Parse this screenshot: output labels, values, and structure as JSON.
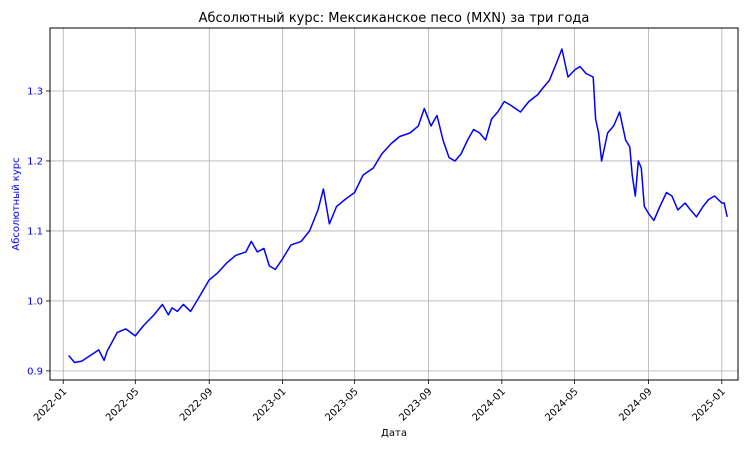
{
  "chart_data": {
    "type": "line",
    "title": "Абсолютный курс: Мексиканское песо (MXN) за три года",
    "xlabel": "Дата",
    "ylabel": "Абсолютный курс",
    "x_ticks": [
      "2022-01",
      "2022-05",
      "2022-09",
      "2023-01",
      "2023-05",
      "2023-09",
      "2024-01",
      "2024-05",
      "2024-09",
      "2025-01"
    ],
    "y_ticks": [
      "0.9",
      "1.0",
      "1.1",
      "1.2",
      "1.3"
    ],
    "xlim": [
      "2021-12-10",
      "2025-01-28"
    ],
    "ylim": [
      0.887,
      1.39
    ],
    "grid": true,
    "colors": {
      "line": "#0000ff",
      "ylabel": "#0000ff",
      "ytick_labels": "#0000ff"
    },
    "series": [
      {
        "x": [
          "2022-01-10",
          "2022-01-20",
          "2022-02-01",
          "2022-02-15",
          "2022-03-01",
          "2022-03-10",
          "2022-03-15",
          "2022-04-01",
          "2022-04-15",
          "2022-05-01",
          "2022-05-15",
          "2022-06-01",
          "2022-06-15",
          "2022-06-25",
          "2022-07-01",
          "2022-07-10",
          "2022-07-20",
          "2022-08-01",
          "2022-08-15",
          "2022-09-01",
          "2022-09-15",
          "2022-10-01",
          "2022-10-15",
          "2022-11-01",
          "2022-11-10",
          "2022-11-20",
          "2022-12-01",
          "2022-12-10",
          "2022-12-20",
          "2023-01-01",
          "2023-01-15",
          "2023-02-01",
          "2023-02-15",
          "2023-03-01",
          "2023-03-10",
          "2023-03-20",
          "2023-04-01",
          "2023-04-15",
          "2023-05-01",
          "2023-05-15",
          "2023-06-01",
          "2023-06-15",
          "2023-07-01",
          "2023-07-15",
          "2023-08-01",
          "2023-08-15",
          "2023-08-25",
          "2023-09-05",
          "2023-09-15",
          "2023-09-25",
          "2023-10-05",
          "2023-10-15",
          "2023-10-25",
          "2023-11-05",
          "2023-11-15",
          "2023-11-25",
          "2023-12-05",
          "2023-12-15",
          "2023-12-25",
          "2024-01-05",
          "2024-01-15",
          "2024-02-01",
          "2024-02-15",
          "2024-03-01",
          "2024-03-10",
          "2024-03-20",
          "2024-04-01",
          "2024-04-10",
          "2024-04-20",
          "2024-05-01",
          "2024-05-10",
          "2024-05-20",
          "2024-06-01",
          "2024-06-05",
          "2024-06-10",
          "2024-06-15",
          "2024-06-25",
          "2024-07-05",
          "2024-07-15",
          "2024-07-25",
          "2024-08-01",
          "2024-08-05",
          "2024-08-10",
          "2024-08-15",
          "2024-08-20",
          "2024-08-25",
          "2024-09-01",
          "2024-09-10",
          "2024-09-20",
          "2024-10-01",
          "2024-10-10",
          "2024-10-20",
          "2024-11-01",
          "2024-11-10",
          "2024-11-20",
          "2024-12-01",
          "2024-12-10",
          "2024-12-20",
          "2025-01-01",
          "2025-01-05",
          "2025-01-10"
        ],
        "y": [
          0.922,
          0.912,
          0.914,
          0.922,
          0.93,
          0.915,
          0.928,
          0.955,
          0.96,
          0.95,
          0.965,
          0.98,
          0.995,
          0.98,
          0.99,
          0.985,
          0.995,
          0.985,
          1.005,
          1.03,
          1.04,
          1.055,
          1.065,
          1.07,
          1.085,
          1.07,
          1.075,
          1.05,
          1.045,
          1.06,
          1.08,
          1.085,
          1.1,
          1.13,
          1.16,
          1.11,
          1.135,
          1.145,
          1.155,
          1.18,
          1.19,
          1.21,
          1.225,
          1.235,
          1.24,
          1.25,
          1.275,
          1.25,
          1.265,
          1.23,
          1.205,
          1.2,
          1.21,
          1.23,
          1.245,
          1.24,
          1.23,
          1.26,
          1.27,
          1.285,
          1.28,
          1.27,
          1.285,
          1.295,
          1.305,
          1.315,
          1.34,
          1.36,
          1.32,
          1.33,
          1.335,
          1.325,
          1.32,
          1.26,
          1.24,
          1.2,
          1.24,
          1.25,
          1.27,
          1.23,
          1.22,
          1.18,
          1.15,
          1.2,
          1.19,
          1.135,
          1.125,
          1.115,
          1.135,
          1.155,
          1.15,
          1.13,
          1.14,
          1.13,
          1.12,
          1.135,
          1.145,
          1.15,
          1.14,
          1.14,
          1.12
        ]
      }
    ]
  }
}
